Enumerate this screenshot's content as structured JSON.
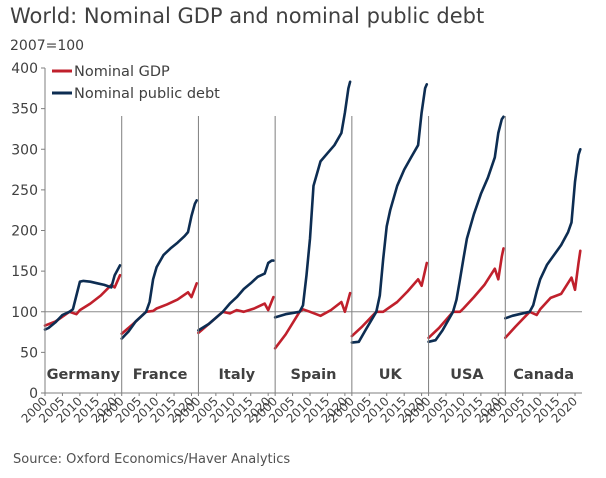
{
  "title": "World: Nominal GDP and nominal public debt",
  "unit_label": "2007=100",
  "source": "Source: Oxford Economics/Haver Analytics",
  "chart_data": {
    "type": "line",
    "title": "World: Nominal GDP and nominal public debt",
    "ylabel": "2007=100",
    "ylim": [
      0,
      400
    ],
    "y_ticks": [
      0,
      50,
      100,
      150,
      200,
      250,
      300,
      350,
      400
    ],
    "reference_line": 100,
    "legend": {
      "position": "top-left",
      "entries": [
        "Nominal GDP",
        "Nominal public debt"
      ]
    },
    "colors": {
      "gdp": "#c0202c",
      "debt": "#0d2d52",
      "axis": "#7f7f7f",
      "text": "#404040"
    },
    "x_ticks": [
      "2000",
      "2005",
      "2010",
      "2015",
      "2020"
    ],
    "panels": [
      {
        "name": "Germany",
        "series": [
          {
            "name": "Nominal GDP",
            "x": [
              2000,
              2003,
              2007,
              2009,
              2010,
              2013,
              2016,
              2019,
              2020,
              2021.5
            ],
            "y": [
              83,
              88,
              100,
              97,
              102,
              110,
              120,
              133,
              130,
              145
            ]
          },
          {
            "name": "Nominal public debt",
            "x": [
              2000,
              2001,
              2003,
              2005,
              2007,
              2008,
              2009,
              2010,
              2011,
              2013,
              2015,
              2017,
              2019,
              2020,
              2021.5
            ],
            "y": [
              78,
              80,
              87,
              96,
              100,
              103,
              120,
              137,
              138,
              137,
              135,
              133,
              130,
              145,
              157
            ]
          }
        ]
      },
      {
        "name": "France",
        "series": [
          {
            "name": "Nominal GDP",
            "x": [
              2000,
              2003,
              2007,
              2009,
              2010,
              2013,
              2016,
              2019,
              2020,
              2021.5
            ],
            "y": [
              73,
              84,
              100,
              101,
              104,
              109,
              115,
              124,
              118,
              135
            ]
          },
          {
            "name": "Nominal public debt",
            "x": [
              2000,
              2002,
              2004,
              2007,
              2008,
              2009,
              2010,
              2012,
              2014,
              2016,
              2018,
              2019,
              2020,
              2021,
              2021.5
            ],
            "y": [
              67,
              76,
              88,
              100,
              112,
              140,
              155,
              170,
              178,
              185,
              193,
              198,
              218,
              233,
              237
            ]
          }
        ]
      },
      {
        "name": "Italy",
        "series": [
          {
            "name": "Nominal GDP",
            "x": [
              2000,
              2003,
              2007,
              2009,
              2011,
              2013,
              2016,
              2019,
              2020,
              2021.5
            ],
            "y": [
              74,
              85,
              100,
              98,
              102,
              100,
              104,
              110,
              102,
              118
            ]
          },
          {
            "name": "Nominal public debt",
            "x": [
              2000,
              2003,
              2007,
              2009,
              2011,
              2013,
              2015,
              2017,
              2019,
              2020,
              2021,
              2021.5
            ],
            "y": [
              77,
              85,
              100,
              110,
              118,
              128,
              135,
              143,
              147,
              160,
              163,
              163
            ]
          }
        ]
      },
      {
        "name": "Spain",
        "series": [
          {
            "name": "Nominal GDP",
            "x": [
              2000,
              2003,
              2007,
              2008,
              2010,
              2013,
              2016,
              2019,
              2020,
              2021.5
            ],
            "y": [
              55,
              72,
              100,
              103,
              100,
              95,
              102,
              112,
              100,
              123
            ]
          },
          {
            "name": "Nominal public debt",
            "x": [
              2000,
              2003,
              2007,
              2008,
              2009,
              2010,
              2011,
              2012,
              2013,
              2015,
              2017,
              2019,
              2020,
              2021,
              2021.5
            ],
            "y": [
              93,
              97,
              100,
              108,
              145,
              190,
              255,
              270,
              285,
              295,
              305,
              320,
              345,
              375,
              383
            ]
          }
        ]
      },
      {
        "name": "UK",
        "series": [
          {
            "name": "Nominal GDP",
            "x": [
              2000,
              2003,
              2007,
              2009,
              2010,
              2013,
              2016,
              2019,
              2020,
              2021.5
            ],
            "y": [
              70,
              82,
              100,
              100,
              103,
              112,
              125,
              140,
              132,
              160
            ]
          },
          {
            "name": "Nominal public debt",
            "x": [
              2000,
              2002,
              2004,
              2007,
              2008,
              2009,
              2010,
              2011,
              2013,
              2015,
              2017,
              2019,
              2020,
              2021,
              2021.5
            ],
            "y": [
              62,
              63,
              78,
              100,
              120,
              165,
              205,
              225,
              255,
              275,
              290,
              305,
              345,
              375,
              380
            ]
          }
        ]
      },
      {
        "name": "USA",
        "series": [
          {
            "name": "Nominal GDP",
            "x": [
              2000,
              2003,
              2007,
              2009,
              2010,
              2013,
              2016,
              2019,
              2020,
              2021,
              2021.5
            ],
            "y": [
              68,
              80,
              100,
              100,
              104,
              118,
              133,
              153,
              140,
              168,
              178
            ]
          },
          {
            "name": "Nominal public debt",
            "x": [
              2000,
              2002,
              2004,
              2007,
              2008,
              2009,
              2010,
              2011,
              2013,
              2015,
              2017,
              2019,
              2020,
              2021,
              2021.5
            ],
            "y": [
              63,
              65,
              77,
              100,
              115,
              140,
              165,
              190,
              220,
              245,
              265,
              290,
              320,
              337,
              340
            ]
          }
        ]
      },
      {
        "name": "Canada",
        "series": [
          {
            "name": "Nominal GDP",
            "x": [
              2000,
              2003,
              2007,
              2009,
              2010,
              2013,
              2016,
              2019,
              2020,
              2021,
              2021.5
            ],
            "y": [
              68,
              82,
              100,
              96,
              103,
              117,
              122,
              142,
              127,
              160,
              175
            ]
          },
          {
            "name": "Nominal public debt",
            "x": [
              2000,
              2002,
              2004,
              2007,
              2008,
              2009,
              2010,
              2012,
              2014,
              2016,
              2018,
              2019,
              2020,
              2021,
              2021.5
            ],
            "y": [
              92,
              95,
              97,
              100,
              108,
              125,
              140,
              158,
              170,
              182,
              198,
              210,
              260,
              293,
              300
            ]
          }
        ]
      }
    ]
  }
}
